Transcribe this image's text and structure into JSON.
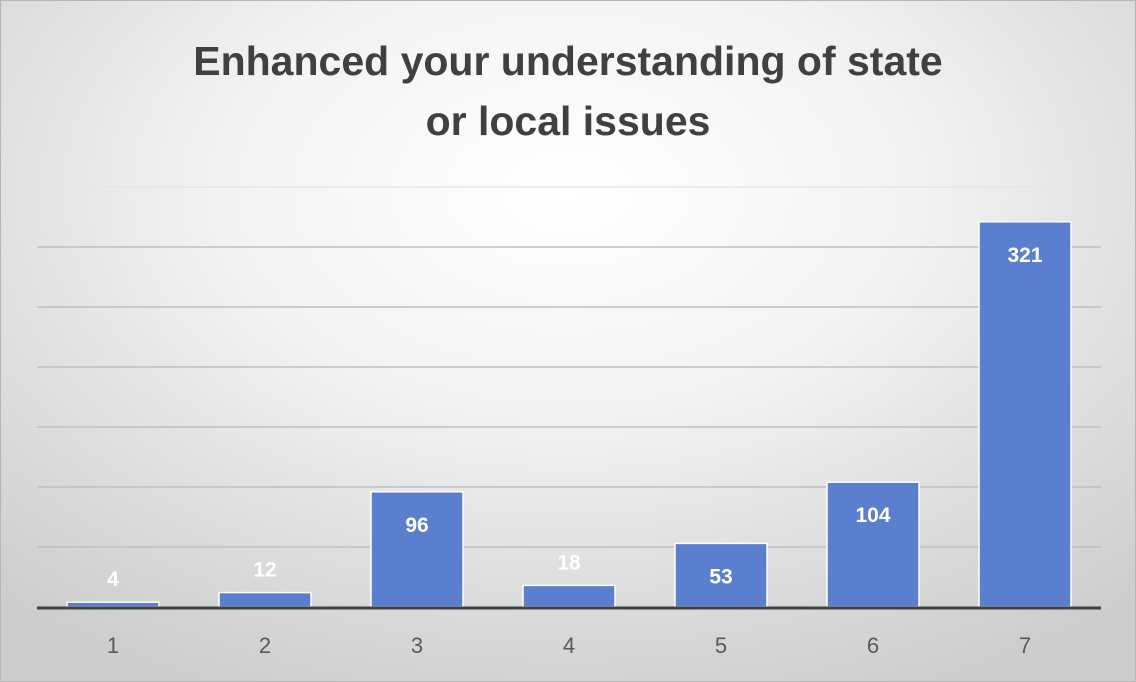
{
  "chart_data": {
    "type": "bar",
    "title": "Enhanced your understanding of state or local issues",
    "categories": [
      "1",
      "2",
      "3",
      "4",
      "5",
      "6",
      "7"
    ],
    "values": [
      4,
      12,
      96,
      18,
      53,
      104,
      321
    ],
    "xlabel": "",
    "ylabel": "",
    "ylim": [
      0,
      350
    ],
    "grid": true,
    "legend": "none",
    "bar_color": "#5b7fcf",
    "bar_edge_color": "#ffffff"
  }
}
